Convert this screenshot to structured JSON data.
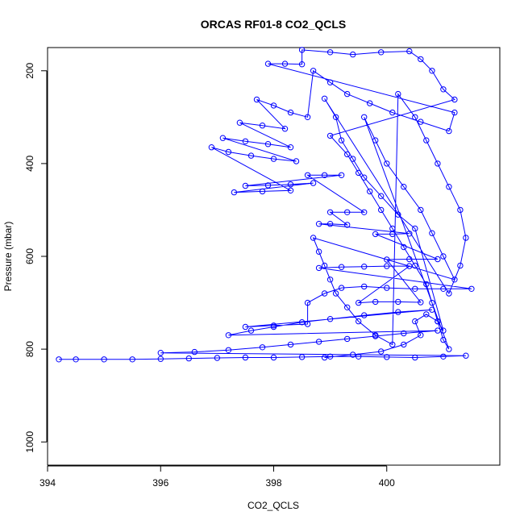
{
  "chart_data": {
    "type": "scatter",
    "title": "ORCAS RF01-8 CO2_QCLS",
    "xlabel": "CO2_QCLS",
    "ylabel": "Pressure (mbar)",
    "xlim": [
      394,
      402
    ],
    "ylim": [
      1050,
      150
    ],
    "y_axis_inverted": true,
    "x_ticks": [
      394,
      396,
      398,
      400
    ],
    "y_ticks": [
      200,
      400,
      600,
      800,
      1000
    ],
    "grid": false,
    "legend": "none",
    "marker": "open-circle",
    "connected": true,
    "series_color": "#0000ff",
    "series": [
      {
        "points": [
          [
            394.2,
            822
          ],
          [
            394.5,
            822
          ],
          [
            395.0,
            822
          ],
          [
            395.5,
            822
          ],
          [
            396.0,
            821
          ],
          [
            396.5,
            820
          ],
          [
            397.0,
            819
          ],
          [
            397.5,
            818
          ],
          [
            398.0,
            818
          ],
          [
            398.5,
            817
          ],
          [
            399.0,
            816
          ],
          [
            399.5,
            816
          ],
          [
            400.0,
            817
          ],
          [
            400.5,
            818
          ],
          [
            401.0,
            816
          ],
          [
            401.4,
            814
          ],
          [
            396.0,
            808
          ],
          [
            396.6,
            806
          ],
          [
            397.2,
            802
          ],
          [
            397.8,
            796
          ],
          [
            398.3,
            790
          ],
          [
            398.8,
            784
          ],
          [
            399.3,
            778
          ],
          [
            399.8,
            772
          ],
          [
            400.3,
            766
          ],
          [
            400.9,
            760
          ],
          [
            397.2,
            770
          ],
          [
            397.6,
            760
          ],
          [
            398.0,
            752
          ],
          [
            398.5,
            742
          ],
          [
            399.0,
            735
          ],
          [
            399.6,
            727
          ],
          [
            400.2,
            720
          ],
          [
            400.8,
            715
          ],
          [
            397.5,
            752
          ],
          [
            398.0,
            749
          ],
          [
            398.6,
            746
          ],
          [
            398.6,
            700
          ],
          [
            398.9,
            680
          ],
          [
            399.2,
            668
          ],
          [
            399.6,
            665
          ],
          [
            400.0,
            668
          ],
          [
            400.5,
            670
          ],
          [
            401.0,
            670
          ],
          [
            401.5,
            670
          ],
          [
            398.8,
            625
          ],
          [
            399.2,
            623
          ],
          [
            399.6,
            622
          ],
          [
            400.0,
            621
          ],
          [
            400.4,
            621
          ],
          [
            399.5,
            700
          ],
          [
            399.8,
            698
          ],
          [
            400.2,
            698
          ],
          [
            400.6,
            699
          ],
          [
            400.0,
            607
          ],
          [
            400.4,
            606
          ],
          [
            400.9,
            606
          ],
          [
            399.8,
            552
          ],
          [
            400.1,
            552
          ],
          [
            400.4,
            551
          ],
          [
            398.8,
            530
          ],
          [
            399.0,
            530
          ],
          [
            399.3,
            532
          ],
          [
            399.0,
            505
          ],
          [
            399.3,
            505
          ],
          [
            399.6,
            505
          ],
          [
            398.6,
            425
          ],
          [
            398.9,
            425
          ],
          [
            399.2,
            425
          ],
          [
            397.5,
            448
          ],
          [
            397.9,
            447
          ],
          [
            398.3,
            445
          ],
          [
            398.7,
            442
          ],
          [
            397.3,
            462
          ],
          [
            397.8,
            460
          ],
          [
            398.3,
            458
          ],
          [
            396.9,
            365
          ],
          [
            397.2,
            375
          ],
          [
            397.6,
            383
          ],
          [
            398.0,
            390
          ],
          [
            398.4,
            395
          ],
          [
            397.1,
            345
          ],
          [
            397.5,
            352
          ],
          [
            397.9,
            358
          ],
          [
            398.3,
            365
          ],
          [
            397.4,
            312
          ],
          [
            397.8,
            318
          ],
          [
            398.2,
            325
          ],
          [
            397.7,
            262
          ],
          [
            398.0,
            275
          ],
          [
            398.3,
            290
          ],
          [
            398.6,
            300
          ],
          [
            398.7,
            200
          ],
          [
            399.0,
            225
          ],
          [
            399.3,
            250
          ],
          [
            399.7,
            270
          ],
          [
            400.1,
            290
          ],
          [
            400.6,
            310
          ],
          [
            401.1,
            330
          ],
          [
            401.2,
            290
          ],
          [
            397.9,
            185
          ],
          [
            398.2,
            185
          ],
          [
            398.5,
            186
          ],
          [
            398.5,
            155
          ],
          [
            399.0,
            160
          ],
          [
            399.4,
            165
          ],
          [
            399.9,
            160
          ],
          [
            400.4,
            158
          ],
          [
            400.6,
            175
          ],
          [
            400.8,
            200
          ],
          [
            401.0,
            240
          ],
          [
            401.2,
            262
          ],
          [
            399.0,
            340
          ],
          [
            399.3,
            380
          ],
          [
            399.5,
            420
          ],
          [
            399.7,
            460
          ],
          [
            399.9,
            500
          ],
          [
            400.1,
            540
          ],
          [
            400.3,
            580
          ],
          [
            400.5,
            620
          ],
          [
            400.7,
            660
          ],
          [
            400.8,
            700
          ],
          [
            400.9,
            740
          ],
          [
            401.0,
            780
          ],
          [
            401.1,
            800
          ],
          [
            399.6,
            300
          ],
          [
            399.8,
            350
          ],
          [
            400.0,
            400
          ],
          [
            400.3,
            450
          ],
          [
            400.6,
            500
          ],
          [
            400.8,
            550
          ],
          [
            401.0,
            600
          ],
          [
            401.2,
            650
          ],
          [
            398.7,
            560
          ],
          [
            398.8,
            590
          ],
          [
            398.9,
            620
          ],
          [
            399.0,
            650
          ],
          [
            399.1,
            680
          ],
          [
            399.3,
            710
          ],
          [
            399.5,
            740
          ],
          [
            399.8,
            770
          ],
          [
            400.1,
            790
          ],
          [
            400.2,
            250
          ],
          [
            400.5,
            300
          ],
          [
            400.7,
            350
          ],
          [
            400.9,
            400
          ],
          [
            401.1,
            450
          ],
          [
            401.3,
            500
          ],
          [
            401.4,
            560
          ],
          [
            401.3,
            620
          ],
          [
            401.1,
            680
          ],
          [
            398.9,
            260
          ],
          [
            399.1,
            300
          ],
          [
            399.2,
            350
          ],
          [
            399.4,
            390
          ],
          [
            399.6,
            430
          ],
          [
            399.9,
            470
          ],
          [
            400.2,
            510
          ],
          [
            400.5,
            540
          ],
          [
            401.0,
            760
          ],
          [
            400.9,
            740
          ],
          [
            400.7,
            725
          ],
          [
            400.5,
            740
          ],
          [
            400.6,
            770
          ],
          [
            400.3,
            790
          ],
          [
            399.9,
            805
          ],
          [
            399.4,
            812
          ],
          [
            398.9,
            818
          ]
        ]
      }
    ]
  }
}
